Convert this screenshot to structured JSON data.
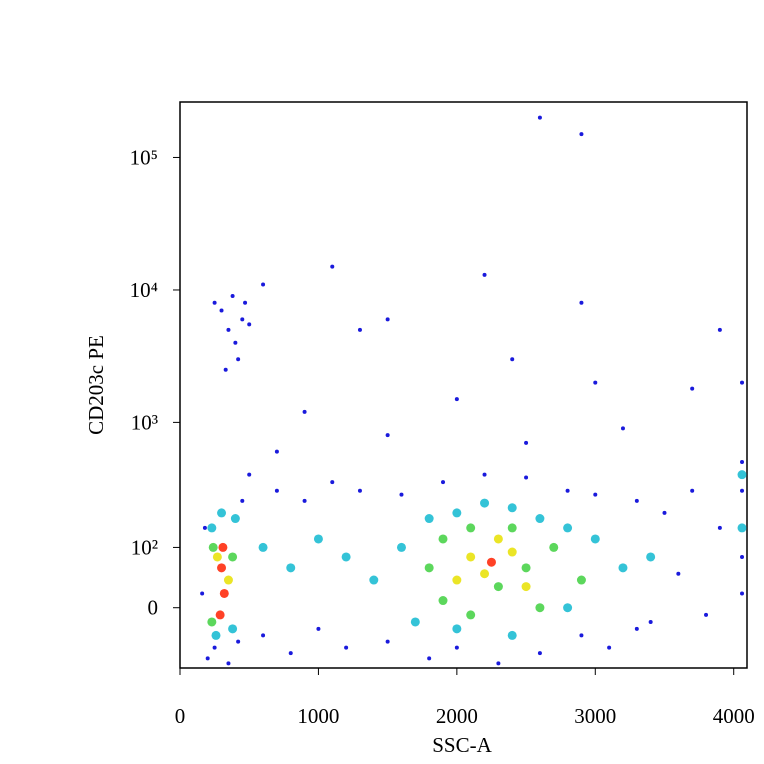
{
  "chart_data": {
    "type": "scatter",
    "x_label": "SSC-A",
    "y_label": "CD203c PE",
    "xlim": [
      0,
      4096
    ],
    "xticks": [
      0,
      1000,
      2000,
      3000,
      4000
    ],
    "ylim": [
      -100,
      262144
    ],
    "yscale": "biexponential",
    "yticks": [
      0,
      {
        "value": 100,
        "label": "10²"
      },
      {
        "value": 1000,
        "label": "10³"
      },
      {
        "value": 10000,
        "label": "10⁴"
      },
      {
        "value": 100000,
        "label": "10⁵"
      }
    ],
    "series": [
      {
        "color": "#1a1adc",
        "x": [
          200,
          250,
          350,
          420,
          600,
          800,
          1000,
          1200,
          1500,
          1800,
          2000,
          2300,
          2600,
          2900,
          3100,
          3300,
          160,
          180,
          450,
          500,
          700,
          900,
          1100,
          1300,
          1600,
          1900,
          2200,
          2500,
          2800,
          3000,
          3300,
          3500,
          3700,
          3900,
          3600,
          3800,
          3400,
          700,
          1500,
          2500,
          3200,
          900,
          2000,
          3000,
          3700,
          1300,
          1500,
          2400,
          3900,
          1100,
          2200,
          2900,
          2600,
          2900,
          300,
          350,
          400,
          450,
          500,
          420,
          380,
          600,
          250,
          330,
          470,
          4060,
          4060,
          4060,
          4060,
          4060
        ],
        "values": [
          -80,
          -60,
          -90,
          -50,
          -40,
          -70,
          -30,
          -60,
          -50,
          -80,
          -60,
          -90,
          -70,
          -40,
          -60,
          -30,
          20,
          150,
          250,
          400,
          300,
          250,
          350,
          300,
          280,
          350,
          400,
          380,
          300,
          280,
          250,
          200,
          300,
          150,
          50,
          -10,
          -20,
          600,
          800,
          700,
          900,
          1200,
          1500,
          2000,
          1800,
          5000,
          6000,
          3000,
          5000,
          15000,
          13000,
          8000,
          200000,
          150000,
          7000,
          5000,
          4000,
          6000,
          5500,
          3000,
          9000,
          11000,
          8000,
          2500,
          8000,
          2000,
          500,
          300,
          80,
          20
        ]
      },
      {
        "color": "#10b8d0",
        "x": [
          230,
          300,
          400,
          260,
          380,
          600,
          800,
          1000,
          1200,
          1400,
          1600,
          1800,
          2000,
          2200,
          2400,
          2600,
          2800,
          3000,
          3200,
          3400,
          1700,
          2000,
          2400,
          2800,
          4060,
          4060
        ],
        "values": [
          150,
          200,
          180,
          -40,
          -30,
          100,
          60,
          120,
          80,
          40,
          100,
          180,
          200,
          240,
          220,
          180,
          150,
          120,
          60,
          80,
          -20,
          -30,
          -40,
          0,
          400,
          150
        ]
      },
      {
        "color": "#40d040",
        "x": [
          240,
          380,
          230,
          1800,
          1900,
          2100,
          2300,
          2500,
          2700,
          2900,
          2100,
          2600,
          1900,
          2400
        ],
        "values": [
          100,
          80,
          -20,
          60,
          120,
          150,
          30,
          60,
          100,
          40,
          -10,
          0,
          10,
          150
        ]
      },
      {
        "color": "#e8e000",
        "x": [
          270,
          350,
          2100,
          2200,
          2400,
          2300,
          2500,
          2000
        ],
        "values": [
          80,
          40,
          80,
          50,
          90,
          120,
          30,
          40
        ]
      },
      {
        "color": "#ff2000",
        "x": [
          300,
          320,
          290,
          310,
          2250
        ],
        "values": [
          60,
          20,
          -10,
          100,
          70
        ]
      }
    ]
  }
}
